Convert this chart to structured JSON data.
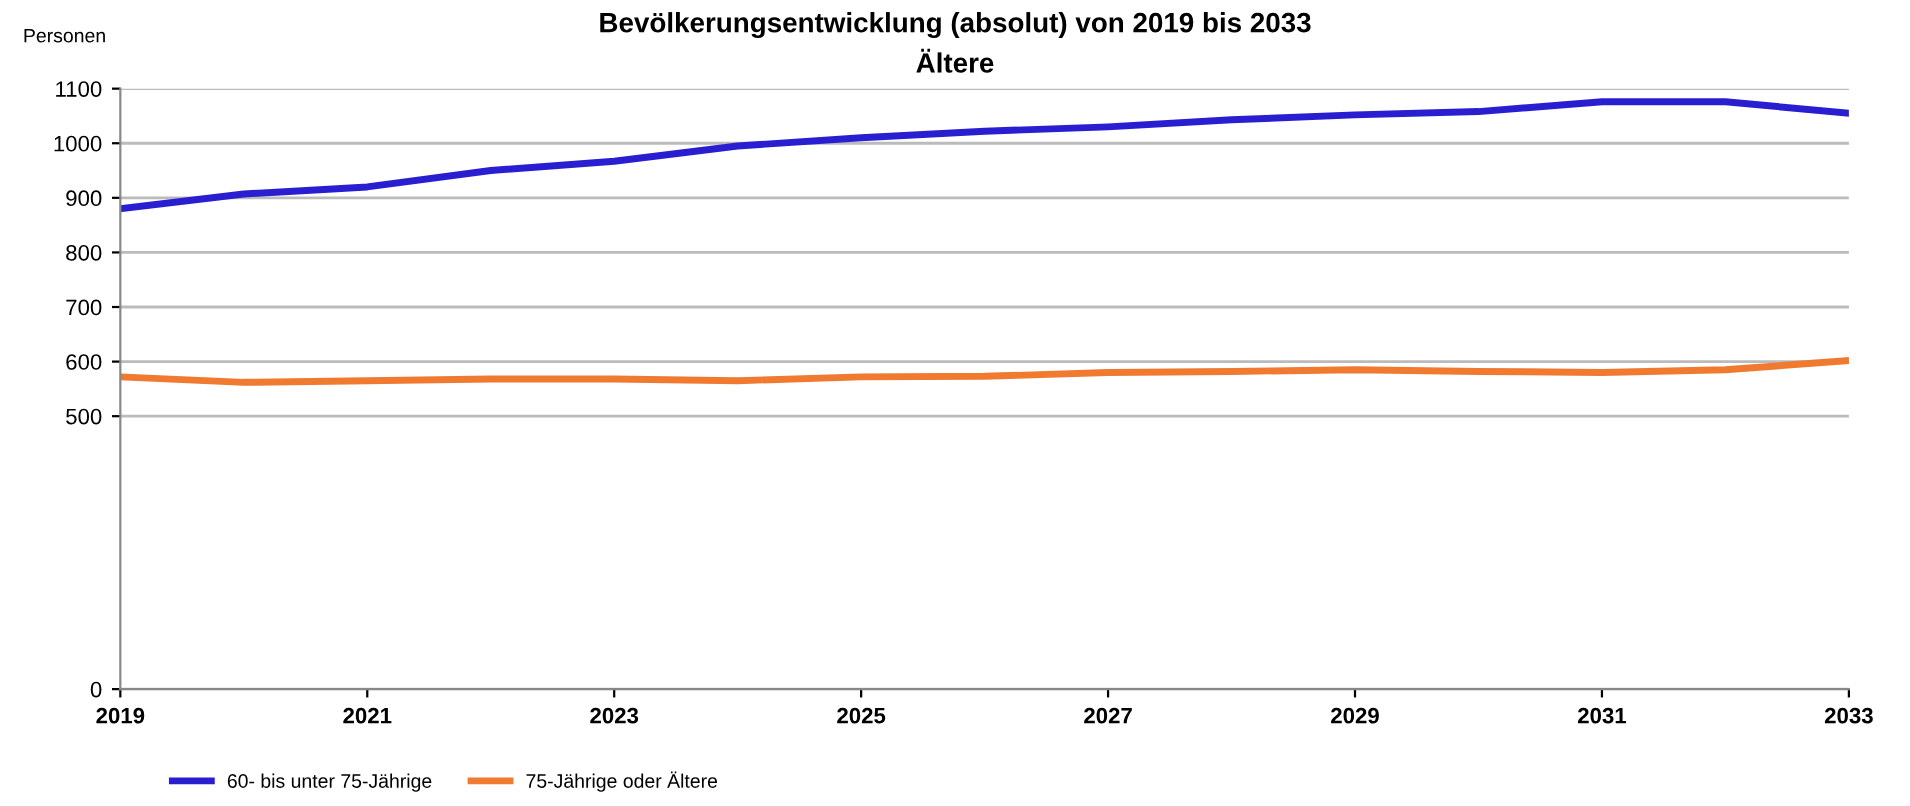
{
  "chart_data": {
    "type": "line",
    "title": "Bevölkerungsentwicklung (absolut) von 2019 bis 2033",
    "subtitle": "Ältere",
    "ylabel": "Personen",
    "x": [
      2019,
      2020,
      2021,
      2022,
      2023,
      2024,
      2025,
      2026,
      2027,
      2028,
      2029,
      2030,
      2031,
      2032,
      2033
    ],
    "series": [
      {
        "name": "60- bis unter 75-Jährige",
        "color": "#2a1fd0",
        "values": [
          880,
          907,
          920,
          950,
          967,
          995,
          1010,
          1022,
          1030,
          1043,
          1052,
          1058,
          1076,
          1076,
          1055
        ]
      },
      {
        "name": "75-Jährige oder Ältere",
        "color": "#f07a30",
        "values": [
          572,
          562,
          565,
          568,
          568,
          565,
          572,
          573,
          580,
          582,
          585,
          582,
          580,
          585,
          602
        ]
      }
    ],
    "xlim": [
      2019,
      2033
    ],
    "xticks": [
      2019,
      2021,
      2023,
      2025,
      2027,
      2029,
      2031,
      2033
    ],
    "ylim": [
      0,
      1100
    ],
    "yticks": [
      0,
      500,
      600,
      700,
      800,
      900,
      1000,
      1100
    ],
    "grid": "y",
    "legend": "bottom",
    "marker": "none",
    "line_style": "solid"
  }
}
